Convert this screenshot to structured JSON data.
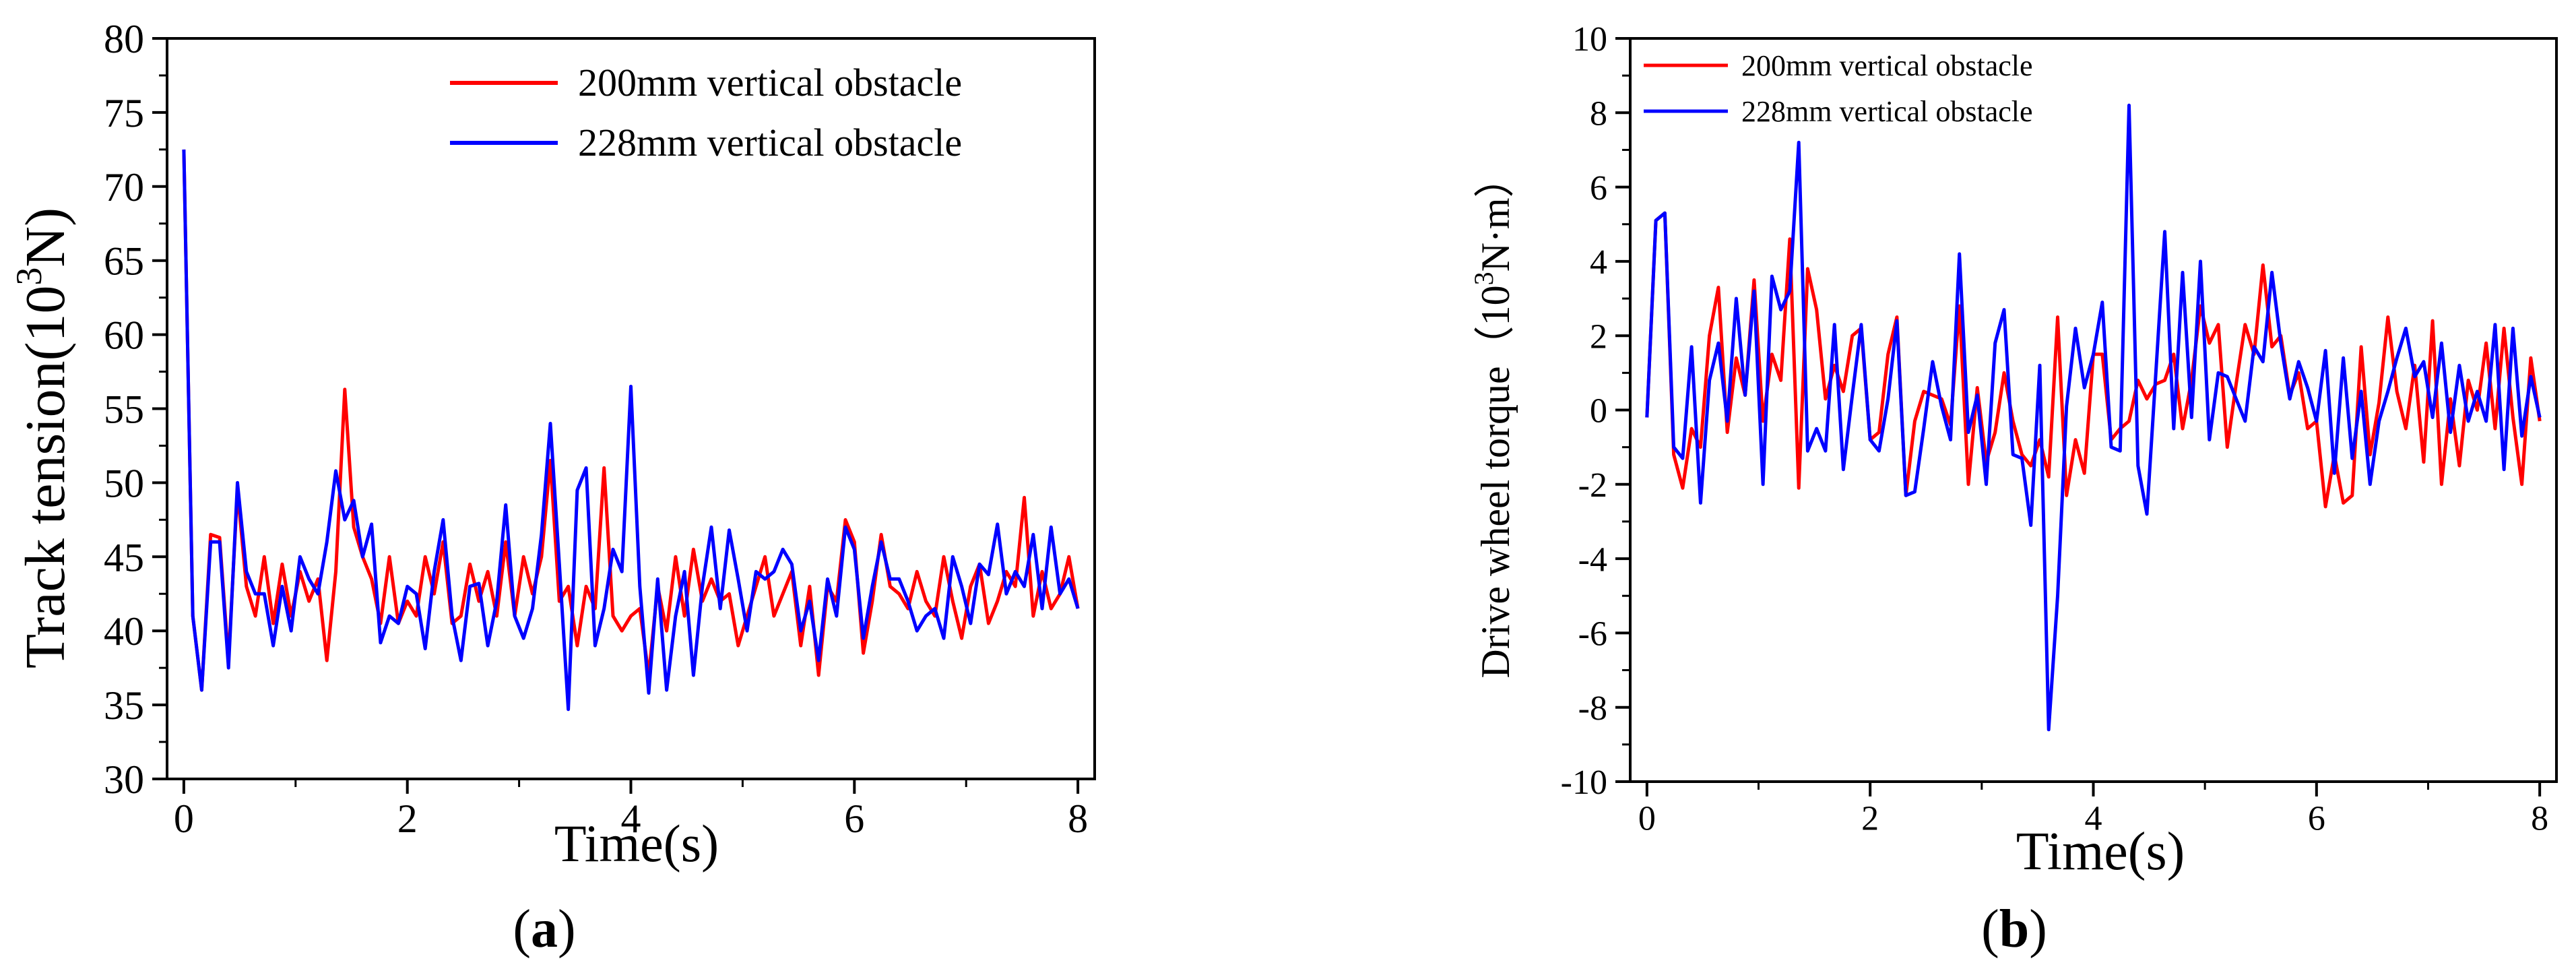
{
  "figure": {
    "panel_a_label": "a",
    "panel_b_label": "b"
  },
  "chart_data": [
    {
      "type": "line",
      "title": "",
      "xlabel": "Time(s)",
      "ylabel_base": "Track tension(10",
      "ylabel_sup": "3",
      "ylabel_tail": "N)",
      "xlim": [
        -0.15,
        8.15
      ],
      "ylim": [
        30,
        80
      ],
      "xticks": [
        0,
        2,
        4,
        6,
        8
      ],
      "yticks": [
        30,
        35,
        40,
        45,
        50,
        55,
        60,
        65,
        70,
        75,
        80
      ],
      "legend_position": "top-right",
      "colors": {
        "series1": "#ff0000",
        "series2": "#0000ff"
      },
      "series": [
        {
          "name": "200mm vertical obstacle",
          "x": [
            0,
            0.08,
            0.16,
            0.24,
            0.32,
            0.4,
            0.48,
            0.56,
            0.64,
            0.72,
            0.8,
            0.88,
            0.96,
            1.04,
            1.12,
            1.2,
            1.28,
            1.36,
            1.44,
            1.52,
            1.6,
            1.68,
            1.76,
            1.84,
            1.92,
            2.0,
            2.08,
            2.16,
            2.24,
            2.32,
            2.4,
            2.48,
            2.56,
            2.64,
            2.72,
            2.8,
            2.88,
            2.96,
            3.04,
            3.12,
            3.2,
            3.28,
            3.36,
            3.44,
            3.52,
            3.6,
            3.68,
            3.76,
            3.84,
            3.92,
            4.0,
            4.08,
            4.16,
            4.24,
            4.32,
            4.4,
            4.48,
            4.56,
            4.64,
            4.72,
            4.8,
            4.88,
            4.96,
            5.04,
            5.12,
            5.2,
            5.28,
            5.36,
            5.44,
            5.52,
            5.6,
            5.68,
            5.76,
            5.84,
            5.92,
            6.0,
            6.08,
            6.16,
            6.24,
            6.32,
            6.4,
            6.48,
            6.56,
            6.64,
            6.72,
            6.8,
            6.88,
            6.96,
            7.04,
            7.12,
            7.2,
            7.28,
            7.36,
            7.44,
            7.52,
            7.6,
            7.68,
            7.76,
            7.84,
            7.92,
            8.0
          ],
          "y": [
            72.5,
            41,
            36,
            46.5,
            46.3,
            38,
            49.5,
            43,
            41,
            45,
            40.5,
            44.5,
            41,
            44,
            42,
            43.5,
            38,
            44,
            56.3,
            47,
            45,
            43.5,
            40.5,
            45,
            40.5,
            42,
            41,
            45,
            42.5,
            46,
            40.5,
            41,
            44.5,
            42,
            44,
            41,
            46,
            41,
            45,
            42.5,
            45,
            51.5,
            42,
            43,
            39,
            43,
            41.5,
            51,
            41,
            40,
            41,
            41.5,
            37,
            43,
            40,
            45,
            41,
            45.5,
            42,
            43.5,
            42,
            42.5,
            39,
            41,
            43,
            45,
            41,
            42.5,
            44,
            39,
            43,
            37,
            43,
            42,
            47.5,
            46,
            38.5,
            42,
            46.5,
            43,
            42.5,
            41.5,
            44,
            42,
            41,
            45,
            42,
            39.5,
            43,
            44.5,
            40.5,
            42,
            44,
            43,
            49,
            41,
            44,
            41.5,
            42.5,
            45,
            41.5
          ]
        },
        {
          "name": "228mm vertical obstacle",
          "x": [
            0,
            0.08,
            0.16,
            0.24,
            0.32,
            0.4,
            0.48,
            0.56,
            0.64,
            0.72,
            0.8,
            0.88,
            0.96,
            1.04,
            1.12,
            1.2,
            1.28,
            1.36,
            1.44,
            1.52,
            1.6,
            1.68,
            1.76,
            1.84,
            1.92,
            2.0,
            2.08,
            2.16,
            2.24,
            2.32,
            2.4,
            2.48,
            2.56,
            2.64,
            2.72,
            2.8,
            2.88,
            2.96,
            3.04,
            3.12,
            3.2,
            3.28,
            3.36,
            3.44,
            3.52,
            3.6,
            3.68,
            3.76,
            3.84,
            3.92,
            4.0,
            4.08,
            4.16,
            4.24,
            4.32,
            4.4,
            4.48,
            4.56,
            4.64,
            4.72,
            4.8,
            4.88,
            4.96,
            5.04,
            5.12,
            5.2,
            5.28,
            5.36,
            5.44,
            5.52,
            5.6,
            5.68,
            5.76,
            5.84,
            5.92,
            6.0,
            6.08,
            6.16,
            6.24,
            6.32,
            6.4,
            6.48,
            6.56,
            6.64,
            6.72,
            6.8,
            6.88,
            6.96,
            7.04,
            7.12,
            7.2,
            7.28,
            7.36,
            7.44,
            7.52,
            7.6,
            7.68,
            7.76,
            7.84,
            7.92,
            8.0
          ],
          "y": [
            72.5,
            41,
            36,
            46,
            46,
            37.5,
            50,
            44,
            42.5,
            42.5,
            39,
            43,
            40,
            45,
            43.5,
            42.5,
            46,
            50.8,
            47.5,
            48.8,
            45,
            47.2,
            39.2,
            41,
            40.5,
            43,
            42.5,
            38.8,
            44,
            47.5,
            41,
            38,
            43,
            43.2,
            39,
            42,
            48.5,
            41,
            39.5,
            41.5,
            46.5,
            54,
            44.5,
            34.7,
            49.5,
            51,
            39,
            41.5,
            45.5,
            44,
            56.5,
            43,
            35.8,
            43.5,
            36,
            41,
            44,
            37,
            43,
            47,
            41.5,
            46.8,
            43.5,
            40,
            44,
            43.5,
            44,
            45.5,
            44.5,
            40,
            42,
            38,
            43.5,
            41,
            47,
            45.5,
            39.5,
            43,
            46,
            43.5,
            43.5,
            42,
            40,
            41,
            41.5,
            39.5,
            45,
            43,
            40.5,
            44.5,
            43.8,
            47.2,
            42.5,
            44,
            43,
            46.5,
            41.5,
            47,
            42.5,
            43.5,
            41.5
          ]
        }
      ]
    },
    {
      "type": "line",
      "title": "",
      "xlabel": "Time(s)",
      "ylabel_base": "Drive wheel torque（10",
      "ylabel_sup": "3",
      "ylabel_tail": "N·m）",
      "xlim": [
        -0.15,
        8.15
      ],
      "ylim": [
        -10,
        10
      ],
      "xticks": [
        0,
        2,
        4,
        6,
        8
      ],
      "yticks": [
        -10,
        -8,
        -6,
        -4,
        -2,
        0,
        2,
        4,
        6,
        8,
        10
      ],
      "legend_position": "top-left",
      "colors": {
        "series1": "#ff0000",
        "series2": "#0000ff"
      },
      "series": [
        {
          "name": "200mm vertical obstacle",
          "x": [
            0,
            0.08,
            0.16,
            0.24,
            0.32,
            0.4,
            0.48,
            0.56,
            0.64,
            0.72,
            0.8,
            0.88,
            0.96,
            1.04,
            1.12,
            1.2,
            1.28,
            1.36,
            1.44,
            1.52,
            1.6,
            1.68,
            1.76,
            1.84,
            1.92,
            2.0,
            2.08,
            2.16,
            2.24,
            2.32,
            2.4,
            2.48,
            2.56,
            2.64,
            2.72,
            2.8,
            2.88,
            2.96,
            3.04,
            3.12,
            3.2,
            3.28,
            3.36,
            3.44,
            3.52,
            3.6,
            3.68,
            3.76,
            3.84,
            3.92,
            4.0,
            4.08,
            4.16,
            4.24,
            4.32,
            4.4,
            4.48,
            4.56,
            4.64,
            4.72,
            4.8,
            4.88,
            4.96,
            5.04,
            5.12,
            5.2,
            5.28,
            5.36,
            5.44,
            5.52,
            5.6,
            5.68,
            5.76,
            5.84,
            5.92,
            6.0,
            6.08,
            6.16,
            6.24,
            6.32,
            6.4,
            6.48,
            6.56,
            6.64,
            6.72,
            6.8,
            6.88,
            6.96,
            7.04,
            7.12,
            7.2,
            7.28,
            7.36,
            7.44,
            7.52,
            7.6,
            7.68,
            7.76,
            7.84,
            7.92,
            8.0
          ],
          "y": [
            -0.2,
            5.1,
            5.3,
            -1.2,
            -2.1,
            -0.5,
            -1,
            2,
            3.3,
            -0.6,
            1.4,
            0.4,
            3.5,
            -0.3,
            1.5,
            0.8,
            4.6,
            -2.1,
            3.8,
            2.7,
            0.3,
            1.2,
            0.5,
            2,
            2.2,
            -0.8,
            -0.6,
            1.5,
            2.5,
            -2.3,
            -0.3,
            0.5,
            0.4,
            0.3,
            -0.4,
            2.8,
            -2,
            0.6,
            -1.4,
            -0.6,
            1,
            -0.3,
            -1.2,
            -1.5,
            -0.8,
            -1.8,
            2.5,
            -2.3,
            -0.8,
            -1.7,
            1.5,
            1.5,
            -0.8,
            -0.5,
            -0.3,
            0.8,
            0.3,
            0.7,
            0.8,
            1.5,
            -0.5,
            0.8,
            2.8,
            1.8,
            2.3,
            -1,
            0.7,
            2.3,
            1.5,
            3.9,
            1.7,
            2,
            0.4,
            1,
            -0.5,
            -0.3,
            -2.6,
            -1.2,
            -2.5,
            -2.3,
            1.7,
            -1.2,
            0.2,
            2.5,
            0.5,
            -0.5,
            1.2,
            -1.4,
            2.4,
            -2,
            0.3,
            -1.5,
            0.8,
            0,
            1.8,
            -0.5,
            2.2,
            -0.2,
            -2,
            1.4,
            -0.3
          ]
        },
        {
          "name": "228mm vertical obstacle",
          "x": [
            0,
            0.08,
            0.16,
            0.24,
            0.32,
            0.4,
            0.48,
            0.56,
            0.64,
            0.72,
            0.8,
            0.88,
            0.96,
            1.04,
            1.12,
            1.2,
            1.28,
            1.36,
            1.44,
            1.52,
            1.6,
            1.68,
            1.76,
            1.84,
            1.92,
            2.0,
            2.08,
            2.16,
            2.24,
            2.32,
            2.4,
            2.48,
            2.56,
            2.64,
            2.72,
            2.8,
            2.88,
            2.96,
            3.04,
            3.12,
            3.2,
            3.28,
            3.36,
            3.44,
            3.52,
            3.6,
            3.68,
            3.76,
            3.84,
            3.92,
            4.0,
            4.08,
            4.16,
            4.24,
            4.32,
            4.4,
            4.48,
            4.56,
            4.64,
            4.72,
            4.8,
            4.88,
            4.96,
            5.04,
            5.12,
            5.2,
            5.28,
            5.36,
            5.44,
            5.52,
            5.6,
            5.68,
            5.76,
            5.84,
            5.92,
            6.0,
            6.08,
            6.16,
            6.24,
            6.32,
            6.4,
            6.48,
            6.56,
            6.64,
            6.72,
            6.8,
            6.88,
            6.96,
            7.04,
            7.12,
            7.2,
            7.28,
            7.36,
            7.44,
            7.52,
            7.6,
            7.68,
            7.76,
            7.84,
            7.92,
            8.0
          ],
          "y": [
            -0.2,
            5.1,
            5.3,
            -1,
            -1.3,
            1.7,
            -2.5,
            0.8,
            1.8,
            -0.3,
            3,
            0.4,
            3.2,
            -2,
            3.6,
            2.7,
            3.2,
            7.2,
            -1.1,
            -0.5,
            -1.1,
            2.3,
            -1.6,
            0.4,
            2.3,
            -0.8,
            -1.1,
            0.3,
            2.4,
            -2.3,
            -2.2,
            -0.5,
            1.3,
            0.1,
            -0.8,
            4.2,
            -0.6,
            0.4,
            -2,
            1.8,
            2.7,
            -1.2,
            -1.3,
            -3.1,
            1.2,
            -8.6,
            -5,
            0.1,
            2.2,
            0.6,
            1.5,
            2.9,
            -1,
            -1.1,
            8.2,
            -1.5,
            -2.8,
            1,
            4.8,
            -0.5,
            3.7,
            -0.2,
            4,
            -0.8,
            1,
            0.9,
            0.3,
            -0.3,
            1.7,
            1.3,
            3.7,
            1.8,
            0.3,
            1.3,
            0.6,
            -0.3,
            1.6,
            -1.7,
            1.4,
            -1.3,
            0.5,
            -2,
            -0.3,
            0.5,
            1.4,
            2.2,
            0.9,
            1.3,
            -0.2,
            1.8,
            -0.6,
            1.2,
            -0.3,
            0.5,
            -0.3,
            2.3,
            -1.6,
            2.2,
            -0.7,
            0.9,
            -0.2
          ]
        }
      ]
    }
  ]
}
